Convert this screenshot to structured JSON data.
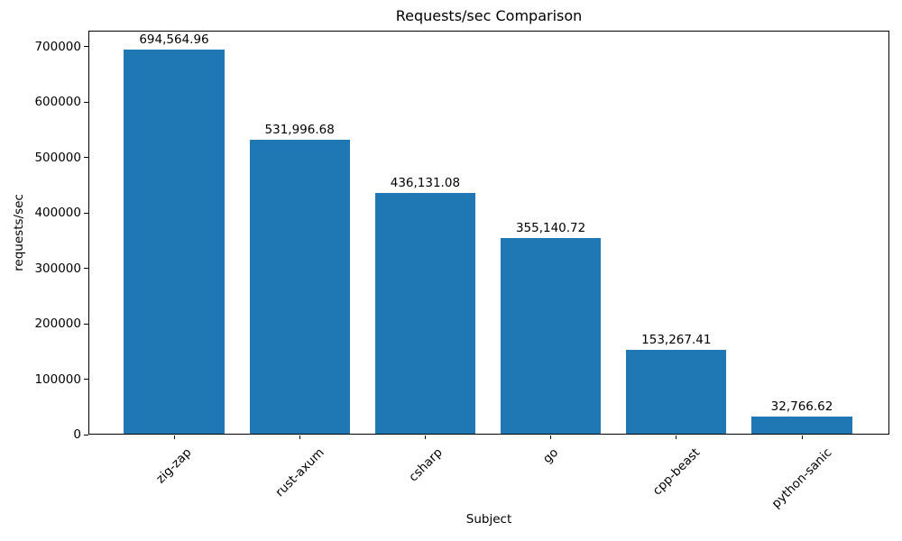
{
  "chart_data": {
    "type": "bar",
    "title": "Requests/sec Comparison",
    "xlabel": "Subject",
    "ylabel": "requests/sec",
    "categories": [
      "zig-zap",
      "rust-axum",
      "csharp",
      "go",
      "cpp-beast",
      "python-sanic"
    ],
    "values": [
      694564.96,
      531996.68,
      436131.08,
      355140.72,
      153267.41,
      32766.62
    ],
    "value_labels": [
      "694,564.96",
      "531,996.68",
      "436,131.08",
      "355,140.72",
      "153,267.41",
      "32,766.62"
    ],
    "yticks": [
      0,
      100000,
      200000,
      300000,
      400000,
      500000,
      600000,
      700000
    ],
    "ylim": [
      0,
      729293
    ],
    "x_tick_rotation": 45,
    "grid": false,
    "legend": null,
    "bar_color": "#1f77b4",
    "axis_color": "#000000",
    "text_color": "#000000",
    "background_color": "#ffffff"
  }
}
